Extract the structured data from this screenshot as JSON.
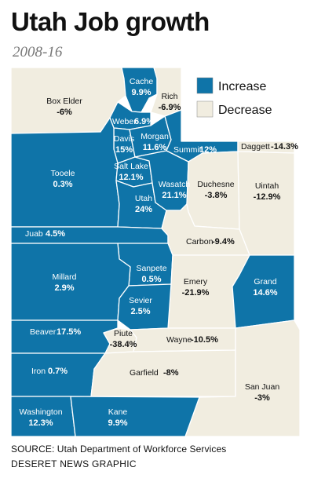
{
  "title": "Utah Job growth",
  "subtitle": "2008-16",
  "legend": {
    "increase_label": "Increase",
    "decrease_label": "Decrease"
  },
  "colors": {
    "increase": "#0f74a8",
    "decrease": "#f1ede0",
    "border": "#ffffff"
  },
  "counties": [
    {
      "name": "Box Elder",
      "value": "-6%",
      "trend": "decrease"
    },
    {
      "name": "Cache",
      "value": "9.9%",
      "trend": "increase"
    },
    {
      "name": "Rich",
      "value": "-6.9%",
      "trend": "decrease"
    },
    {
      "name": "Weber",
      "value": "6.9%",
      "trend": "increase"
    },
    {
      "name": "Davis",
      "value": "15%",
      "trend": "increase"
    },
    {
      "name": "Morgan",
      "value": "11.6%",
      "trend": "increase"
    },
    {
      "name": "Summit",
      "value": "12%",
      "trend": "increase"
    },
    {
      "name": "Daggett",
      "value": "-14.3%",
      "trend": "decrease"
    },
    {
      "name": "Tooele",
      "value": "0.3%",
      "trend": "increase"
    },
    {
      "name": "Salt Lake",
      "value": "12.1%",
      "trend": "increase"
    },
    {
      "name": "Utah",
      "value": "24%",
      "trend": "increase"
    },
    {
      "name": "Wasatch",
      "value": "21.1%",
      "trend": "increase"
    },
    {
      "name": "Duchesne",
      "value": "-3.8%",
      "trend": "decrease"
    },
    {
      "name": "Uintah",
      "value": "-12.9%",
      "trend": "decrease"
    },
    {
      "name": "Juab",
      "value": "4.5%",
      "trend": "increase"
    },
    {
      "name": "Carbon",
      "value": "-9.4%",
      "trend": "decrease"
    },
    {
      "name": "Sanpete",
      "value": "0.5%",
      "trend": "increase"
    },
    {
      "name": "Millard",
      "value": "2.9%",
      "trend": "increase"
    },
    {
      "name": "Emery",
      "value": "-21.9%",
      "trend": "decrease"
    },
    {
      "name": "Grand",
      "value": "14.6%",
      "trend": "increase"
    },
    {
      "name": "Sevier",
      "value": "2.5%",
      "trend": "increase"
    },
    {
      "name": "Beaver",
      "value": "17.5%",
      "trend": "increase"
    },
    {
      "name": "Piute",
      "value": "-38.4%",
      "trend": "decrease"
    },
    {
      "name": "Wayne",
      "value": "-10.5%",
      "trend": "decrease"
    },
    {
      "name": "Iron",
      "value": "0.7%",
      "trend": "increase"
    },
    {
      "name": "Garfield",
      "value": "-8%",
      "trend": "decrease"
    },
    {
      "name": "San Juan",
      "value": "-3%",
      "trend": "decrease"
    },
    {
      "name": "Washington",
      "value": "12.3%",
      "trend": "increase"
    },
    {
      "name": "Kane",
      "value": "9.9%",
      "trend": "increase"
    }
  ],
  "source": "SOURCE: Utah Department of Workforce Services",
  "credit": "DESERET NEWS GRAPHIC"
}
